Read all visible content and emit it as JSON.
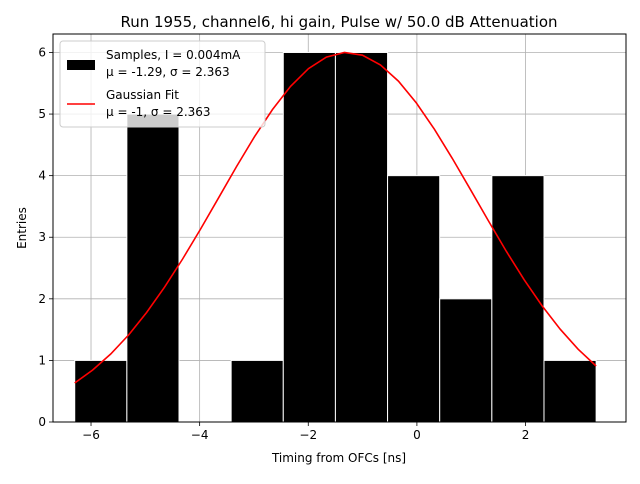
{
  "chart_data": {
    "type": "bar",
    "title": "Run 1955, channel6, hi gain, Pulse w/ 50.0 dB Attenuation",
    "xlabel": "Timing from OFCs [ns]",
    "ylabel": "Entries",
    "xlim": [
      -6.7,
      3.85
    ],
    "ylim": [
      0,
      6.3
    ],
    "grid": true,
    "legend_position": "upper-left",
    "x_ticks": [
      {
        "value": -6,
        "label": "−6"
      },
      {
        "value": -4,
        "label": "−4"
      },
      {
        "value": -2,
        "label": "−2"
      },
      {
        "value": 0,
        "label": "0"
      },
      {
        "value": 2,
        "label": "2"
      }
    ],
    "y_ticks": [
      {
        "value": 0,
        "label": "0"
      },
      {
        "value": 1,
        "label": "1"
      },
      {
        "value": 2,
        "label": "2"
      },
      {
        "value": 3,
        "label": "3"
      },
      {
        "value": 4,
        "label": "4"
      },
      {
        "value": 5,
        "label": "5"
      },
      {
        "value": 6,
        "label": "6"
      }
    ],
    "histogram": {
      "name": "Samples, I = 0.004mA",
      "stats": "μ = -1.29, σ = 2.363",
      "color": "#000000",
      "edge_color": "#ffffff",
      "bin_edges": [
        -6.3,
        -5.34,
        -4.38,
        -3.42,
        -2.46,
        -1.5,
        -0.54,
        0.42,
        1.38,
        2.34,
        3.3
      ],
      "counts": [
        1,
        5,
        0,
        1,
        6,
        6,
        4,
        2,
        4,
        1
      ]
    },
    "fit": {
      "name": "Gaussian Fit",
      "stats": "μ = -1, σ = 2.363",
      "color": "#ff0000",
      "amplitude": 6.0,
      "mean": -1.29,
      "sigma": 2.363,
      "x_range": [
        -6.3,
        3.3
      ],
      "samples": 30
    }
  }
}
